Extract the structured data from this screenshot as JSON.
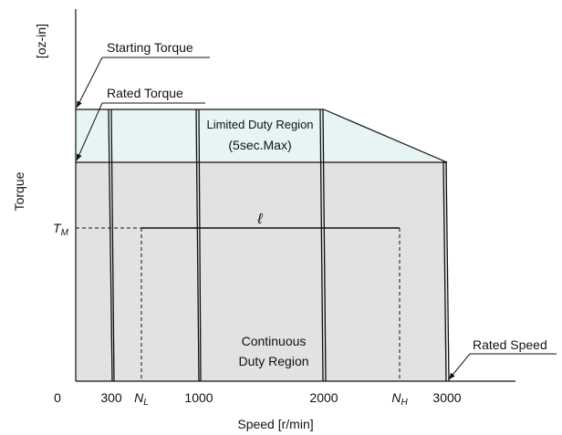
{
  "y_axis": {
    "title": "Torque",
    "unit": "[oz-in]"
  },
  "x_axis": {
    "title": "Speed  [r/min]",
    "ticks": [
      {
        "main": "0"
      },
      {
        "main": "300"
      },
      {
        "main": "N",
        "sub": "L"
      },
      {
        "main": "1000"
      },
      {
        "main": "2000"
      },
      {
        "main": "N",
        "sub": "H"
      },
      {
        "main": "3000"
      }
    ]
  },
  "annotations": {
    "starting_torque": "Starting Torque",
    "rated_torque": "Rated Torque",
    "rated_speed": "Rated Speed",
    "tm": {
      "main": "T",
      "sub": "M"
    },
    "load_line": "ℓ"
  },
  "regions": {
    "limited": [
      "Limited Duty Region",
      "(5sec.Max)"
    ],
    "continuous": [
      "Continuous",
      "Duty Region"
    ]
  }
}
